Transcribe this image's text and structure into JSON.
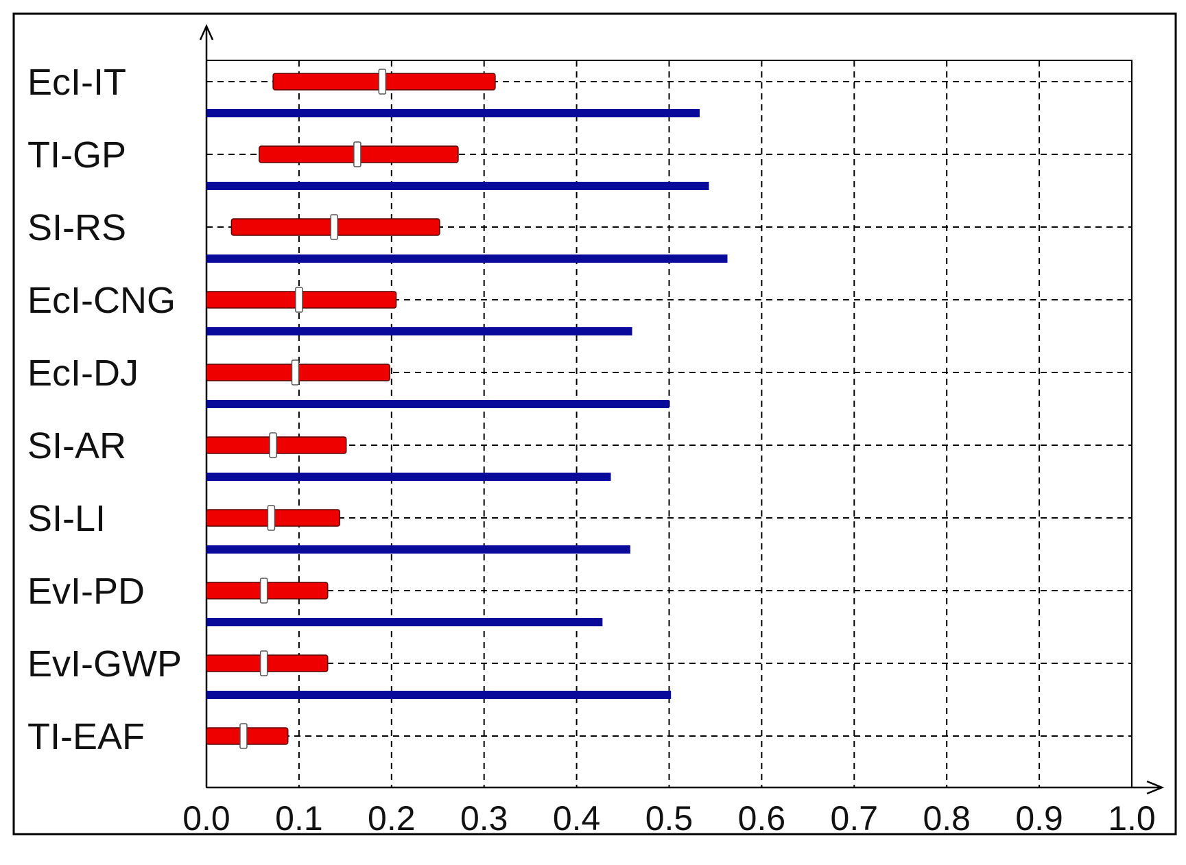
{
  "chart_data": {
    "type": "bar",
    "title": "",
    "xlabel": "",
    "ylabel": "",
    "xlim": [
      0,
      1
    ],
    "x_ticks": [
      "0.0",
      "0.1",
      "0.2",
      "0.3",
      "0.4",
      "0.5",
      "0.6",
      "0.7",
      "0.8",
      "0.9",
      "1.0"
    ],
    "grid": true,
    "categories": [
      "EcI-IT",
      "TI-GP",
      "SI-RS",
      "EcI-CNG",
      "EcI-DJ",
      "SI-AR",
      "SI-LI",
      "EvI-PD",
      "EvI-GWP",
      "TI-EAF"
    ],
    "series": [
      {
        "kind": "range",
        "color": "#ee0000",
        "low": [
          0.072,
          0.057,
          0.027,
          0.0,
          0.0,
          0.0,
          0.0,
          0.0,
          0.0,
          0.0
        ],
        "high": [
          0.312,
          0.272,
          0.252,
          0.205,
          0.198,
          0.151,
          0.144,
          0.131,
          0.131,
          0.088
        ],
        "mid": [
          0.19,
          0.163,
          0.138,
          0.1,
          0.096,
          0.072,
          0.07,
          0.062,
          0.062,
          0.04
        ]
      },
      {
        "kind": "value",
        "color": "#0a0a9a",
        "values": [
          0.533,
          0.543,
          0.563,
          0.46,
          0.5,
          0.437,
          0.458,
          0.428,
          0.502,
          null
        ]
      }
    ]
  }
}
